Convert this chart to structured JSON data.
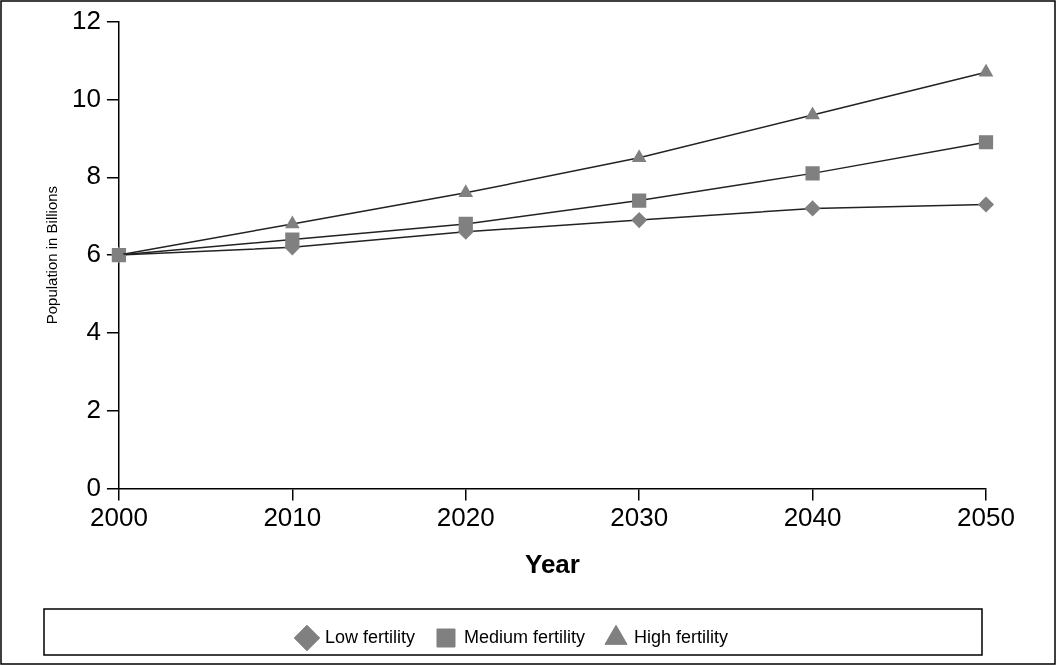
{
  "chart_data": {
    "type": "line",
    "xlabel": "Year",
    "ylabel": "Population in Billions",
    "x": [
      2000,
      2010,
      2020,
      2030,
      2040,
      2050
    ],
    "series": [
      {
        "name": "Low fertility",
        "color": "#808080",
        "marker": "diamond",
        "values": [
          6.0,
          6.2,
          6.6,
          6.9,
          7.2,
          7.3
        ]
      },
      {
        "name": "Medium fertility",
        "color": "#808080",
        "marker": "square",
        "values": [
          6.0,
          6.4,
          6.8,
          7.4,
          8.1,
          8.9
        ]
      },
      {
        "name": "High fertility",
        "color": "#808080",
        "marker": "triangle",
        "values": [
          6.0,
          6.8,
          7.6,
          8.5,
          9.6,
          10.7
        ]
      }
    ],
    "xlim": [
      2000,
      2050
    ],
    "xticks": [
      2000,
      2010,
      2020,
      2030,
      2040,
      2050
    ],
    "ylim": [
      0,
      12
    ],
    "yticks": [
      0,
      2,
      4,
      6,
      8,
      10,
      12
    ],
    "grid": false,
    "legend": "bottom",
    "line_style": "solid"
  }
}
